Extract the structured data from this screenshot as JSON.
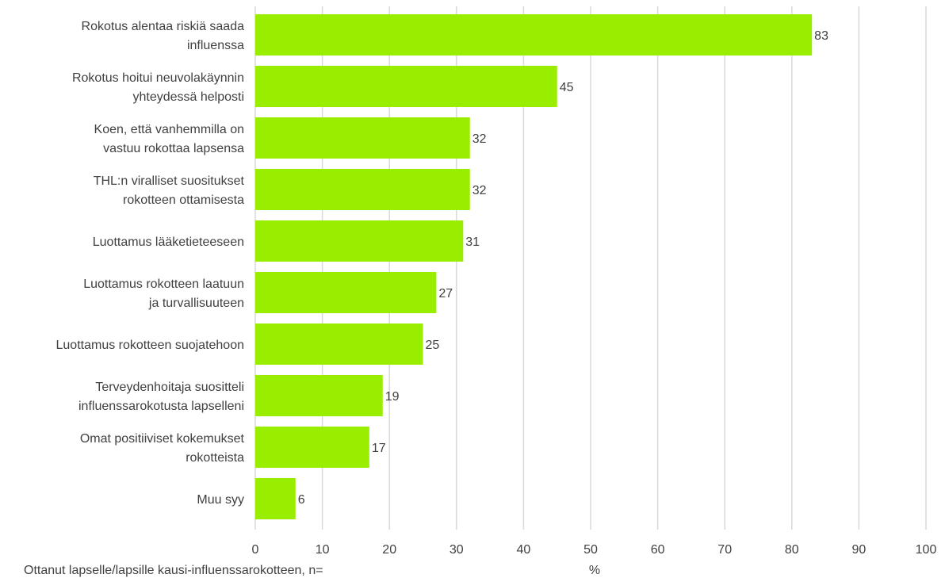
{
  "chart_data": {
    "type": "bar",
    "orientation": "horizontal",
    "categories": [
      [
        "Rokotus alentaa riskiä saada",
        "influenssa"
      ],
      [
        "Rokotus hoitui neuvolakäynnin",
        "yhteydessä helposti"
      ],
      [
        "Koen, että vanhemmilla on",
        "vastuu rokottaa lapsensa"
      ],
      [
        "THL:n viralliset suositukset",
        "rokotteen ottamisesta"
      ],
      [
        "Luottamus lääketieteeseen"
      ],
      [
        "Luottamus rokotteen laatuun",
        "ja turvallisuuteen"
      ],
      [
        "Luottamus rokotteen suojatehoon"
      ],
      [
        "Terveydenhoitaja suositteli",
        "influenssarokotusta lapselleni"
      ],
      [
        "Omat positiiviset kokemukset",
        "rokotteista"
      ],
      [
        "Muu syy"
      ]
    ],
    "values": [
      83,
      45,
      32,
      32,
      31,
      27,
      25,
      19,
      17,
      6
    ],
    "value_labels": [
      "83",
      "45",
      "32",
      "32",
      "31",
      "27",
      "25",
      "19",
      "17",
      "6"
    ],
    "xlim": [
      0,
      100
    ],
    "xticks": [
      0,
      10,
      20,
      30,
      40,
      50,
      60,
      70,
      80,
      90,
      100
    ],
    "xlabel": "%",
    "grid": "vertical",
    "footnote": "Ottanut lapselle/lapsille kausi-influenssarokotteen, n=",
    "colors": {
      "bar": "#99ee00",
      "grid": "#d9d9d9",
      "text": "#404040"
    }
  }
}
